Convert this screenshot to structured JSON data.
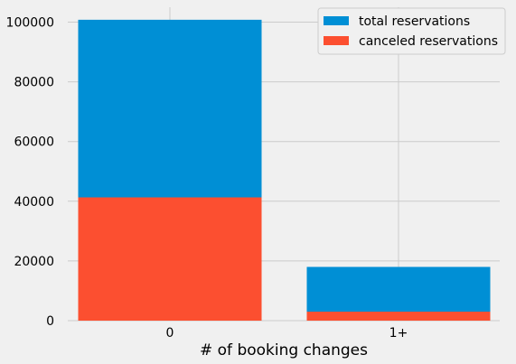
{
  "chart_data": {
    "type": "bar",
    "categories": [
      "0",
      "1+"
    ],
    "series": [
      {
        "name": "total reservations",
        "values": [
          100800,
          18000
        ],
        "color": "#008fd5"
      },
      {
        "name": "canceled reservations",
        "values": [
          41300,
          3000
        ],
        "color": "#fc4f30"
      }
    ],
    "xlabel": "# of booking changes",
    "ylabel": "",
    "ylim": [
      0,
      105000
    ],
    "yticks": [
      0,
      20000,
      40000,
      60000,
      80000,
      100000
    ],
    "ytick_labels": [
      "0",
      "20000",
      "40000",
      "60000",
      "80000",
      "100000"
    ],
    "grid": true,
    "legend_position": "top-right",
    "overlay": true
  }
}
